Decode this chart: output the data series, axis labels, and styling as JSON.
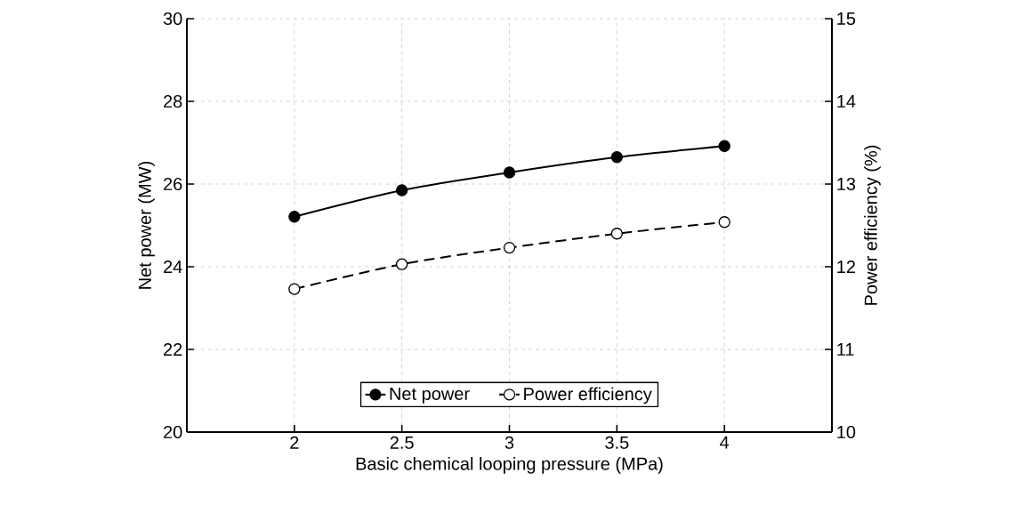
{
  "chart_data": {
    "type": "line",
    "xlabel": "Basic chemical looping pressure (MPa)",
    "ylabel": "Net power (MW)",
    "y2label": "Power efficiency (%)",
    "x": [
      2,
      2.5,
      3,
      3.5,
      4
    ],
    "series": [
      {
        "name": "Net power",
        "color": "#000000",
        "values": [
          25.21,
          25.85,
          26.28,
          26.65,
          26.92
        ],
        "line_style": "solid"
      },
      {
        "name": "Power efficiency",
        "color": "#000000",
        "values": [
          11.73,
          12.03,
          12.23,
          12.4,
          12.54
        ],
        "axis": "y2",
        "line_style": "dashed"
      }
    ],
    "xlim": [
      1.5,
      4.5
    ],
    "xticks": [
      2,
      2.5,
      3,
      3.5,
      4
    ],
    "ylim": [
      20,
      30
    ],
    "yticks": [
      20,
      22,
      24,
      26,
      28,
      30
    ],
    "y2lim": [
      10,
      15
    ],
    "y2ticks": [
      10,
      11,
      12,
      13,
      14,
      15
    ],
    "grid": true,
    "legend": "bottom",
    "marker": "circle"
  }
}
